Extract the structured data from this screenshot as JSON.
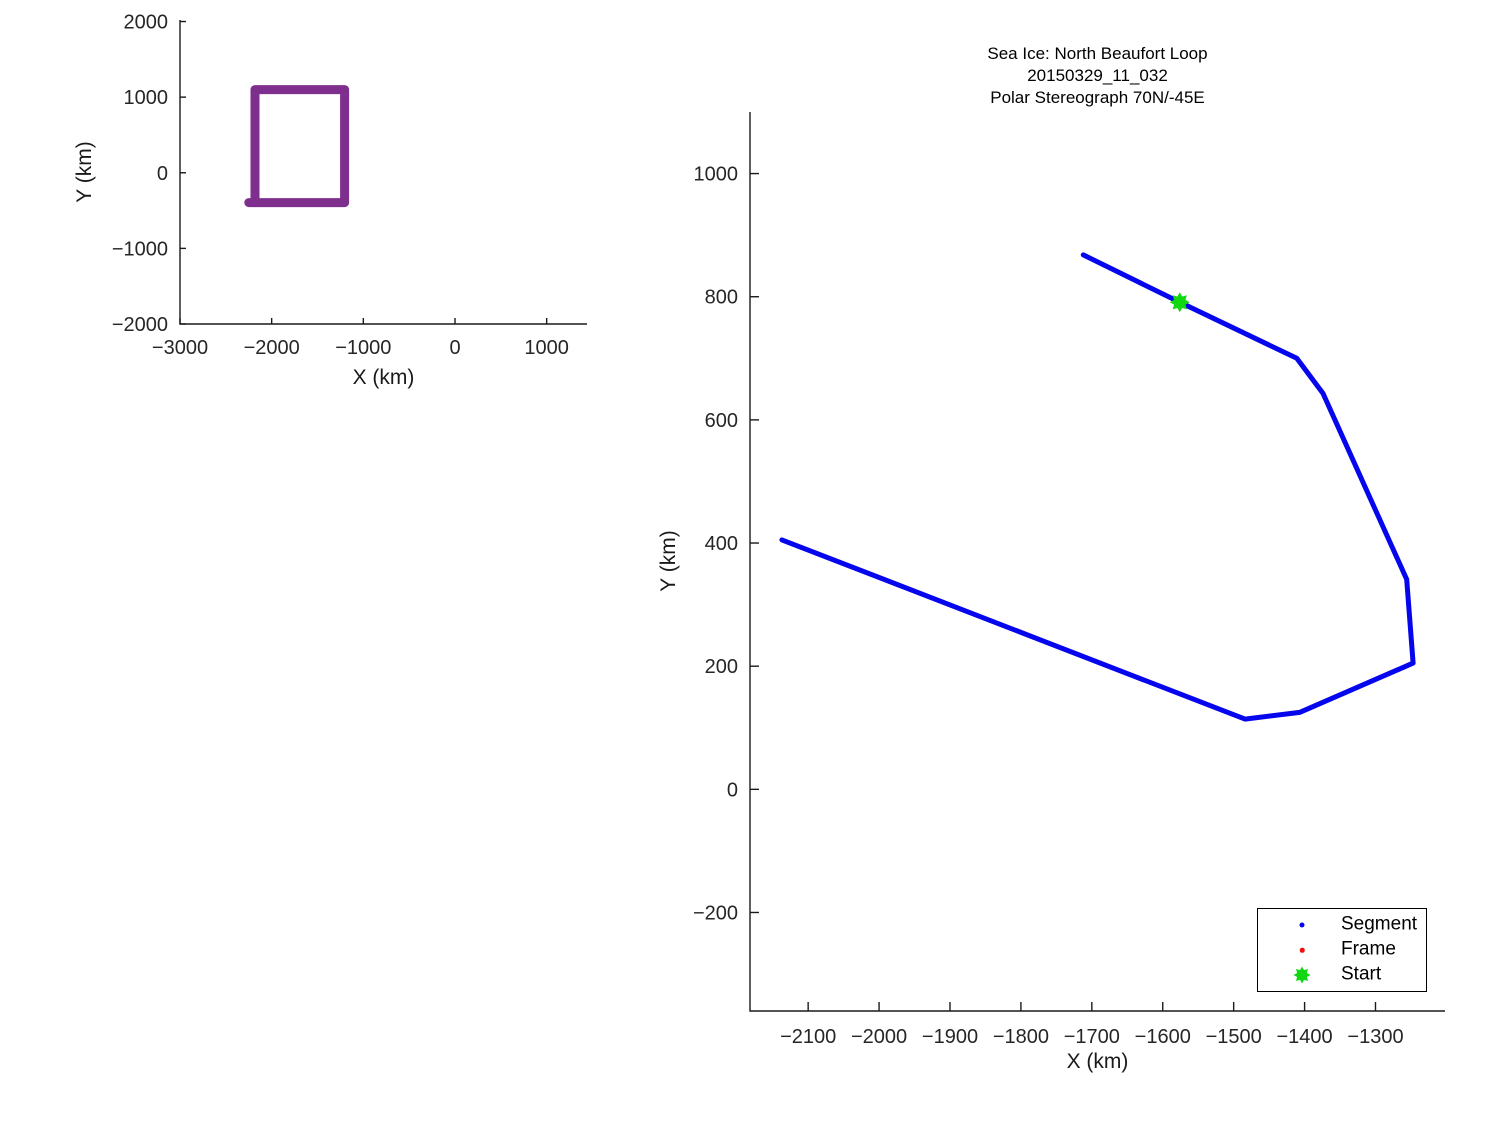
{
  "figure": {
    "background": "#ffffff",
    "text_color": "#262626",
    "axis_color": "#1a1a1a"
  },
  "chart_data": [
    {
      "id": "overview-map",
      "type": "line",
      "title": "",
      "xlabel": "X (km)",
      "ylabel": "Y (km)",
      "xlim": [
        -3000,
        1440
      ],
      "ylim": [
        -2000,
        2020
      ],
      "xticks": [
        -3000,
        -2000,
        -1000,
        0,
        1000
      ],
      "yticks": [
        -2000,
        -1000,
        0,
        1000,
        2000
      ],
      "grid": false,
      "legend": null,
      "series": [
        {
          "name": "coverage-outline",
          "color": "#7E2F8E",
          "line_width": 9,
          "points": [
            [
              -2250,
              -395
            ],
            [
              -1204,
              -395
            ],
            [
              -1204,
              1100
            ],
            [
              -2182,
              1100
            ],
            [
              -2182,
              -355
            ]
          ]
        }
      ]
    },
    {
      "id": "trajectory",
      "type": "line",
      "title_lines": [
        "Sea Ice: North Beaufort Loop",
        "20150329_11_032",
        "Polar Stereograph 70N/-45E"
      ],
      "xlabel": "X (km)",
      "ylabel": "Y (km)",
      "xlim": [
        -2182,
        -1202
      ],
      "ylim": [
        -360,
        1100
      ],
      "xticks": [
        -2100,
        -2000,
        -1900,
        -1800,
        -1700,
        -1600,
        -1500,
        -1400,
        -1300
      ],
      "yticks": [
        -200,
        0,
        200,
        400,
        600,
        800,
        1000
      ],
      "grid": false,
      "series": [
        {
          "name": "Segment",
          "color": "#0505EE",
          "line_width": 5,
          "points": [
            [
              -1712,
              868
            ],
            [
              -1576,
              791
            ],
            [
              -1411,
              700
            ],
            [
              -1374,
              643
            ],
            [
              -1256,
              341
            ],
            [
              -1247,
              205
            ],
            [
              -1407,
              125
            ],
            [
              -1484,
              114
            ],
            [
              -2137,
              405
            ]
          ]
        }
      ],
      "markers": [
        {
          "name": "Start",
          "shape": "star8",
          "color": "#12D812",
          "x": -1576,
          "y": 791,
          "size": 20
        }
      ],
      "legend": {
        "position": "southeast",
        "items": [
          {
            "label": "Segment",
            "marker": "dot",
            "color": "#0505EE",
            "size": 5
          },
          {
            "label": "Frame",
            "marker": "dot",
            "color": "#EE1111",
            "size": 4.5
          },
          {
            "label": "Start",
            "marker": "star8",
            "color": "#12D812",
            "size": 17
          }
        ]
      }
    }
  ]
}
